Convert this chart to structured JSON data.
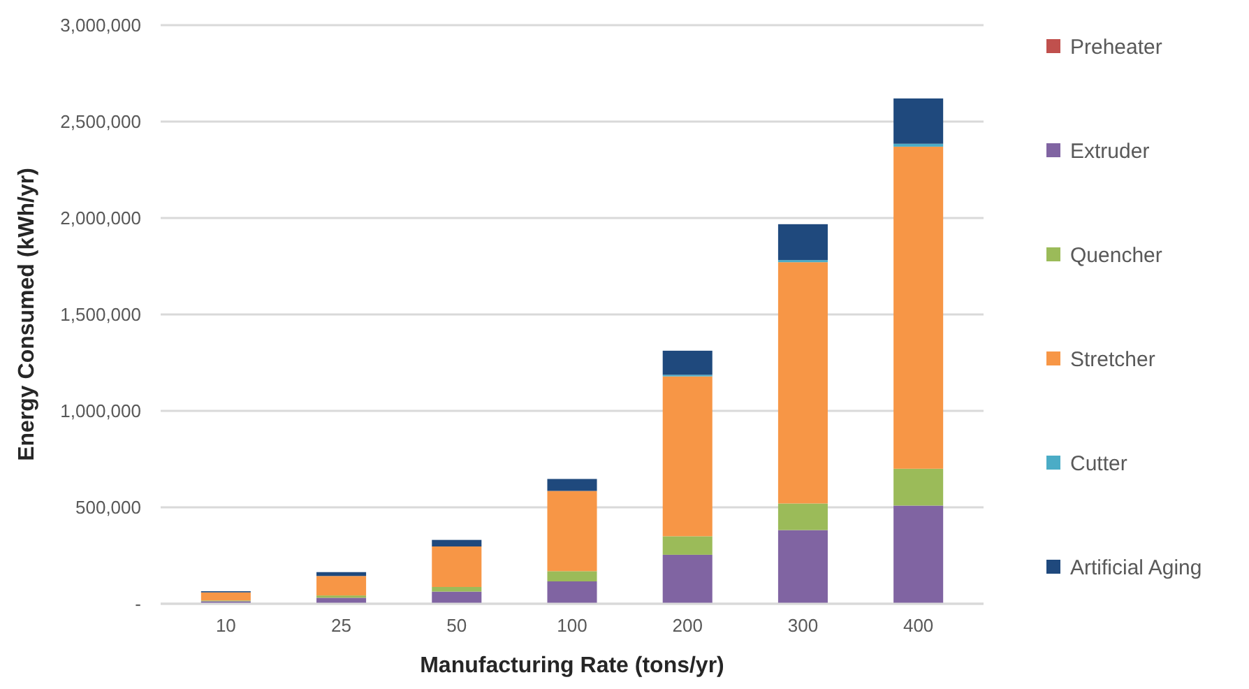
{
  "chart_data": {
    "type": "bar",
    "stacked": true,
    "xlabel": "Manufacturing Rate (tons/yr)",
    "ylabel": "Energy Consumed (kWh/yr)",
    "categories": [
      "10",
      "25",
      "50",
      "100",
      "200",
      "300",
      "400"
    ],
    "series": [
      {
        "name": "Preheater",
        "color": "#c0504d",
        "values": [
          0,
          0,
          0,
          0,
          0,
          0,
          0
        ]
      },
      {
        "name": "Extruder",
        "color": "#8064a2",
        "values": [
          13000,
          31000,
          63000,
          116000,
          254000,
          382000,
          509000
        ]
      },
      {
        "name": "Quencher",
        "color": "#9bbb59",
        "values": [
          4000,
          12000,
          24000,
          53000,
          96000,
          138000,
          191000
        ]
      },
      {
        "name": "Stretcher",
        "color": "#f79646",
        "values": [
          42000,
          101000,
          210000,
          416000,
          829000,
          1251000,
          1670000
        ]
      },
      {
        "name": "Cutter",
        "color": "#4bacc6",
        "values": [
          null,
          null,
          null,
          null,
          8000,
          11000,
          15000
        ]
      },
      {
        "name": "Artificial Aging",
        "color": "#1f497d",
        "values": [
          6000,
          20000,
          34000,
          62000,
          125000,
          186000,
          235000
        ]
      }
    ],
    "ylim": [
      0,
      3000000
    ],
    "yticks": [
      {
        "value": 0,
        "label": "-"
      },
      {
        "value": 500000,
        "label": "500,000"
      },
      {
        "value": 1000000,
        "label": "1,000,000"
      },
      {
        "value": 1500000,
        "label": "1,500,000"
      },
      {
        "value": 2000000,
        "label": "2,000,000"
      },
      {
        "value": 2500000,
        "label": "2,500,000"
      },
      {
        "value": 3000000,
        "label": "3,000,000"
      }
    ],
    "grid": "y",
    "legend": "right"
  }
}
